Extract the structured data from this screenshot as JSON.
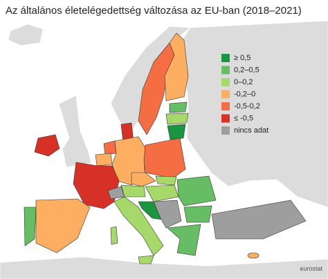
{
  "title": "Az általános életelégedettség változása az EU-ban (2018–2021)",
  "legend": [
    {
      "label": "≥ 0,5",
      "color": "#1a9641"
    },
    {
      "label": "0,2–0,5",
      "color": "#66bd63"
    },
    {
      "label": "0–0,2",
      "color": "#a6d96a"
    },
    {
      "label": "-0,2–0",
      "color": "#fdae61"
    },
    {
      "label": "-0,5-0,2",
      "color": "#f46d43"
    },
    {
      "label": "≤ -0,5",
      "color": "#d73027"
    },
    {
      "label": "nincs adat",
      "color": "#9e9e9e"
    }
  ],
  "credit": "eurostat"
}
